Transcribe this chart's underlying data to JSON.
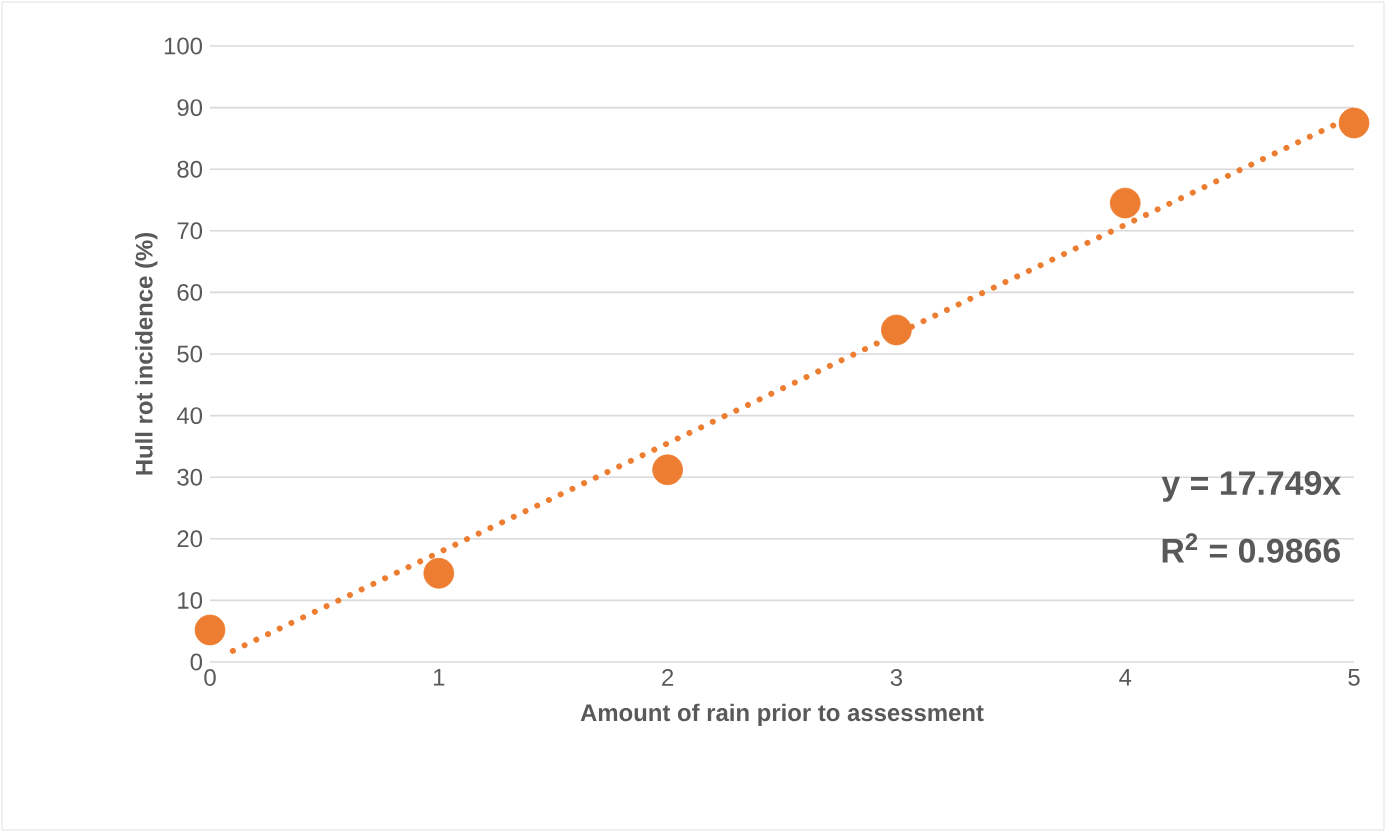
{
  "chart_data": {
    "type": "scatter",
    "xlabel": "Amount of rain prior to assessment",
    "ylabel": "Hull rot incidence (%)",
    "xlim": [
      0,
      5
    ],
    "ylim": [
      0,
      100
    ],
    "xticks": [
      0,
      1,
      2,
      3,
      4,
      5
    ],
    "yticks": [
      0,
      10,
      20,
      30,
      40,
      50,
      60,
      70,
      80,
      90,
      100
    ],
    "grid": "y",
    "series": [
      {
        "marker": "circle",
        "color": "#ed7d31",
        "x": [
          0,
          1,
          2,
          3,
          4,
          5
        ],
        "values": [
          5.2,
          14.4,
          31.2,
          53.9,
          74.5,
          87.5
        ]
      },
      {
        "type": "line",
        "line_style": "dotted",
        "color": "#ed7d31",
        "x": [
          0.1,
          5
        ],
        "values": [
          1.8,
          88.7
        ]
      }
    ],
    "annotations": [
      "y = 17.749x",
      "R$^{2}$ = 0.9866"
    ]
  }
}
